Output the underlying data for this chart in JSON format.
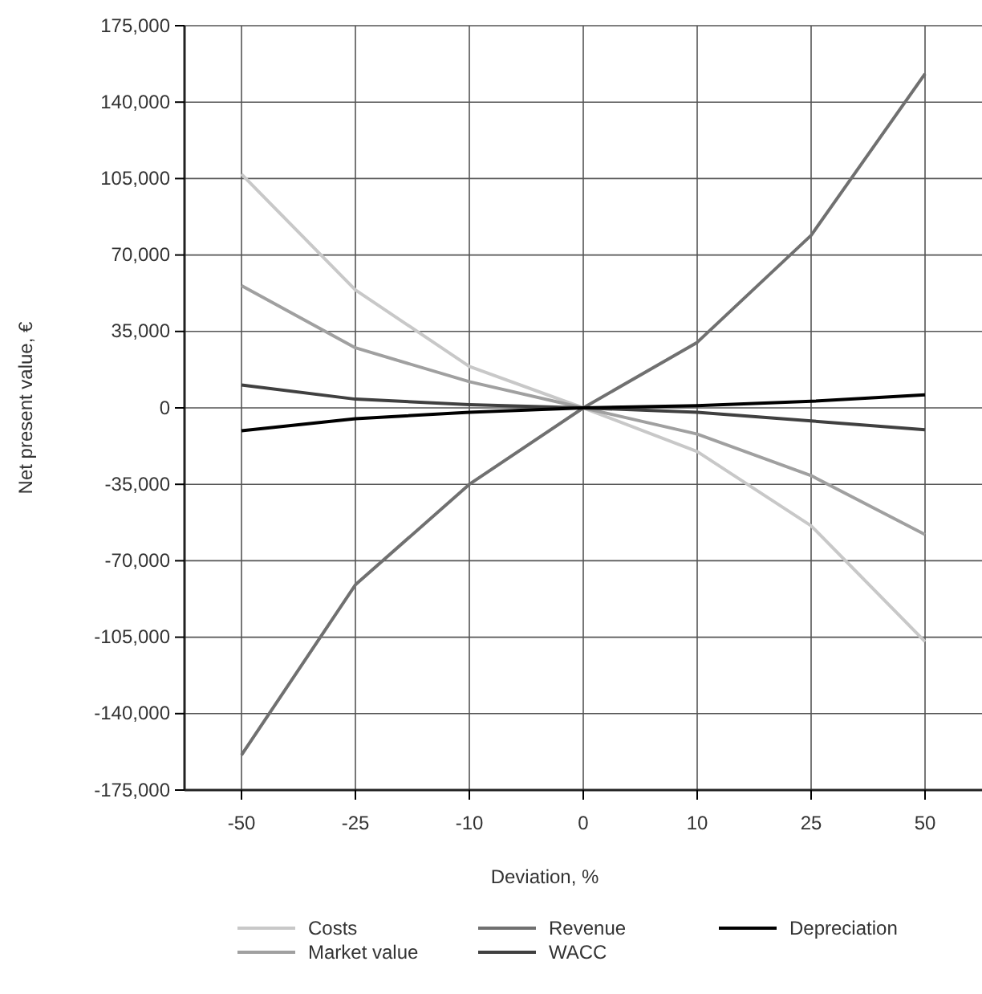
{
  "chart_data": {
    "type": "line",
    "xlabel": "Deviation, %",
    "ylabel": "Net present value, €",
    "categories": [
      "-50",
      "-25",
      "-10",
      "0",
      "10",
      "25",
      "50"
    ],
    "series": [
      {
        "name": "Costs",
        "color": "#c8c8c8",
        "values": [
          107000,
          54000,
          19000,
          0,
          -20000,
          -54000,
          -107000
        ]
      },
      {
        "name": "Market value",
        "color": "#a0a0a0",
        "values": [
          56000,
          27500,
          12000,
          0,
          -12000,
          -31000,
          -58000
        ]
      },
      {
        "name": "Revenue",
        "color": "#707070",
        "values": [
          -159000,
          -81000,
          -35000,
          0,
          30000,
          79000,
          153000
        ]
      },
      {
        "name": "WACC",
        "color": "#404040",
        "values": [
          10500,
          4000,
          1500,
          0,
          -2000,
          -6000,
          -10000
        ]
      },
      {
        "name": "Depreciation",
        "color": "#000000",
        "values": [
          -10500,
          -5000,
          -2000,
          0,
          1000,
          3000,
          6000
        ]
      }
    ],
    "ylim": [
      -175000,
      175000
    ],
    "yticks": [
      {
        "value": -175000,
        "label": "-175,000"
      },
      {
        "value": -140000,
        "label": "-140,000"
      },
      {
        "value": -105000,
        "label": "-105,000"
      },
      {
        "value": -70000,
        "label": "-70,000"
      },
      {
        "value": -35000,
        "label": "-35,000"
      },
      0,
      {
        "value": 35000,
        "label": "35,000"
      },
      {
        "value": 70000,
        "label": "70,000"
      },
      {
        "value": 105000,
        "label": "105,000"
      },
      {
        "value": 140000,
        "label": "140,000"
      },
      {
        "value": 175000,
        "label": "175,000"
      }
    ],
    "grid": true,
    "legend": "bottom",
    "marker": "none",
    "line_style": "solid"
  }
}
